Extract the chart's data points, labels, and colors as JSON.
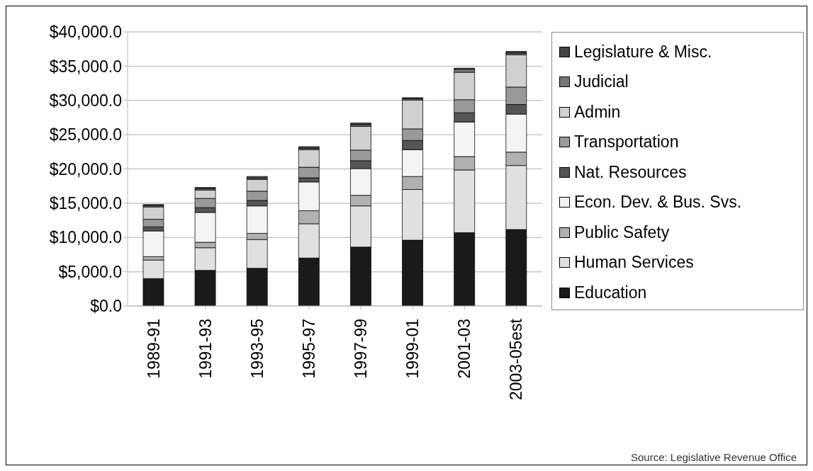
{
  "chart_data": {
    "type": "bar",
    "stacked": true,
    "categories": [
      "1989-91",
      "1991-93",
      "1993-95",
      "1995-97",
      "1997-99",
      "1999-01",
      "2001-03",
      "2003-05est"
    ],
    "series": [
      {
        "name": "Education",
        "color": "#1a1a1a",
        "values": [
          4000,
          5200,
          5500,
          7000,
          8600,
          9600,
          10700,
          11150
        ]
      },
      {
        "name": "Human Services",
        "color": "#e0e0e0",
        "values": [
          2700,
          3300,
          4200,
          5000,
          6000,
          7400,
          9150,
          9350
        ]
      },
      {
        "name": "Public Safety",
        "color": "#b0b0b0",
        "values": [
          500,
          800,
          900,
          1900,
          1550,
          1900,
          1950,
          1950
        ]
      },
      {
        "name": "Econ. Dev. & Bus. Svs.",
        "color": "#f4f4f4",
        "values": [
          3750,
          4350,
          4000,
          4200,
          3900,
          3900,
          5050,
          5550
        ]
      },
      {
        "name": "Nat. Resources",
        "color": "#555555",
        "values": [
          600,
          700,
          800,
          600,
          1150,
          1350,
          1350,
          1400
        ]
      },
      {
        "name": "Transportation",
        "color": "#999999",
        "values": [
          1100,
          1350,
          1350,
          1550,
          1550,
          1700,
          1900,
          2550
        ]
      },
      {
        "name": "Admin",
        "color": "#d0d0d0",
        "values": [
          1800,
          1200,
          1700,
          2550,
          3450,
          4200,
          4000,
          4700
        ]
      },
      {
        "name": "Judicial",
        "color": "#777777",
        "values": [
          200,
          200,
          200,
          200,
          250,
          200,
          450,
          250
        ]
      },
      {
        "name": "Legislature & Misc.",
        "color": "#444444",
        "values": [
          150,
          200,
          250,
          250,
          250,
          150,
          150,
          250
        ]
      }
    ],
    "ylim": [
      0,
      40000
    ],
    "yticks": [
      {
        "value": 0,
        "label": "$0.0"
      },
      {
        "value": 5000,
        "label": "$5,000.0"
      },
      {
        "value": 10000,
        "label": "$10,000.0"
      },
      {
        "value": 15000,
        "label": "$15,000.0"
      },
      {
        "value": 20000,
        "label": "$20,000.0"
      },
      {
        "value": 25000,
        "label": "$25,000.0"
      },
      {
        "value": 30000,
        "label": "$30,000.0"
      },
      {
        "value": 35000,
        "label": "$35,000.0"
      },
      {
        "value": 40000,
        "label": "$40,000.0"
      }
    ],
    "grid": "y",
    "legend": "right",
    "annotations": [
      "Source: Legislative Revenue Office"
    ]
  }
}
